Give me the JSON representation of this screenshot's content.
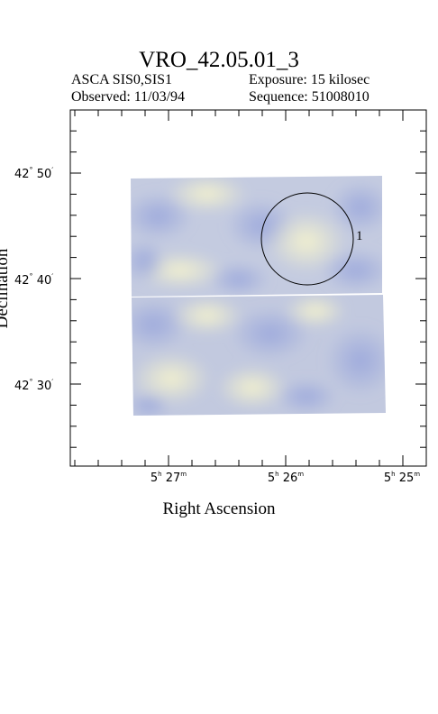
{
  "header": {
    "title": "VRO_42.05.01_3",
    "instrument": "ASCA SIS0,SIS1",
    "observed": "Observed: 11/03/94",
    "exposure": "Exposure: 15 kilosec",
    "sequence": "Sequence: 51008010"
  },
  "axes": {
    "xlabel": "Right Ascension",
    "ylabel": "Declination",
    "x_ticks": [
      {
        "h": "5",
        "hu": "h",
        "m": "27",
        "mu": "m"
      },
      {
        "h": "5",
        "hu": "h",
        "m": "26",
        "mu": "m"
      },
      {
        "h": "5",
        "hu": "h",
        "m": "25",
        "mu": "m"
      }
    ],
    "y_ticks": [
      {
        "deg": "42",
        "du": "°",
        "min": "50",
        "mu": "′"
      },
      {
        "deg": "42",
        "du": "°",
        "min": "40",
        "mu": "′"
      },
      {
        "deg": "42",
        "du": "°",
        "min": "30",
        "mu": "′"
      }
    ]
  },
  "image": {
    "colors": {
      "blue": "#a9b5de",
      "cream": "#eeeecb",
      "mid": "#c9cfdd"
    }
  },
  "region": {
    "label": "1"
  }
}
